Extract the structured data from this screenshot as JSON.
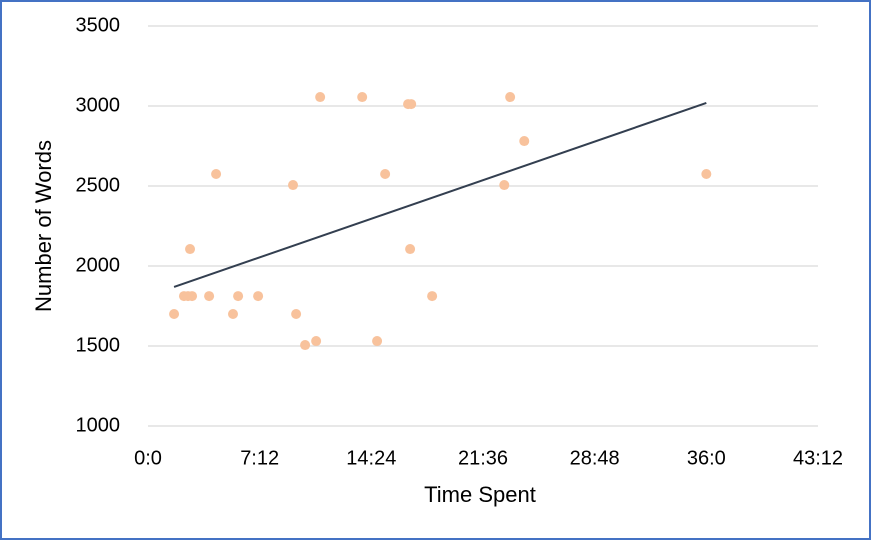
{
  "chart_data": {
    "type": "scatter",
    "x_label": "Time Spent",
    "y_label": "Number of Words",
    "x": [
      1.68,
      2.32,
      2.58,
      2.84,
      2.71,
      3.94,
      4.39,
      5.48,
      5.81,
      7.1,
      9.35,
      9.55,
      10.13,
      10.84,
      11.1,
      13.81,
      14.77,
      15.29,
      16.77,
      16.97,
      16.9,
      18.32,
      22.97,
      23.35,
      24.26,
      36.0
    ],
    "values": [
      1700,
      1812,
      1812,
      1812,
      2106,
      1812,
      2575,
      1700,
      1812,
      1812,
      2506,
      1700,
      1506,
      1531,
      3056,
      3056,
      1531,
      2575,
      3012,
      3012,
      2106,
      1812,
      2506,
      3056,
      2781,
      2575
    ],
    "color": "#f8c29c",
    "trendline": {
      "x": [
        1.68,
        36.0
      ],
      "values": [
        1869,
        3019
      ],
      "color": "#333f50"
    },
    "xlim": [
      0,
      43.2
    ],
    "xticks": [
      {
        "value": 0,
        "label": "0:0"
      },
      {
        "value": 7.2,
        "label": "7:12"
      },
      {
        "value": 14.4,
        "label": "14:24"
      },
      {
        "value": 21.6,
        "label": "21:36"
      },
      {
        "value": 28.8,
        "label": "28:48"
      },
      {
        "value": 36,
        "label": "36:0"
      },
      {
        "value": 43.2,
        "label": "43:12"
      }
    ],
    "ylim": [
      1000,
      3500
    ],
    "yticks": [
      1000,
      1500,
      2000,
      2500,
      3000,
      3500
    ],
    "grid": true
  }
}
